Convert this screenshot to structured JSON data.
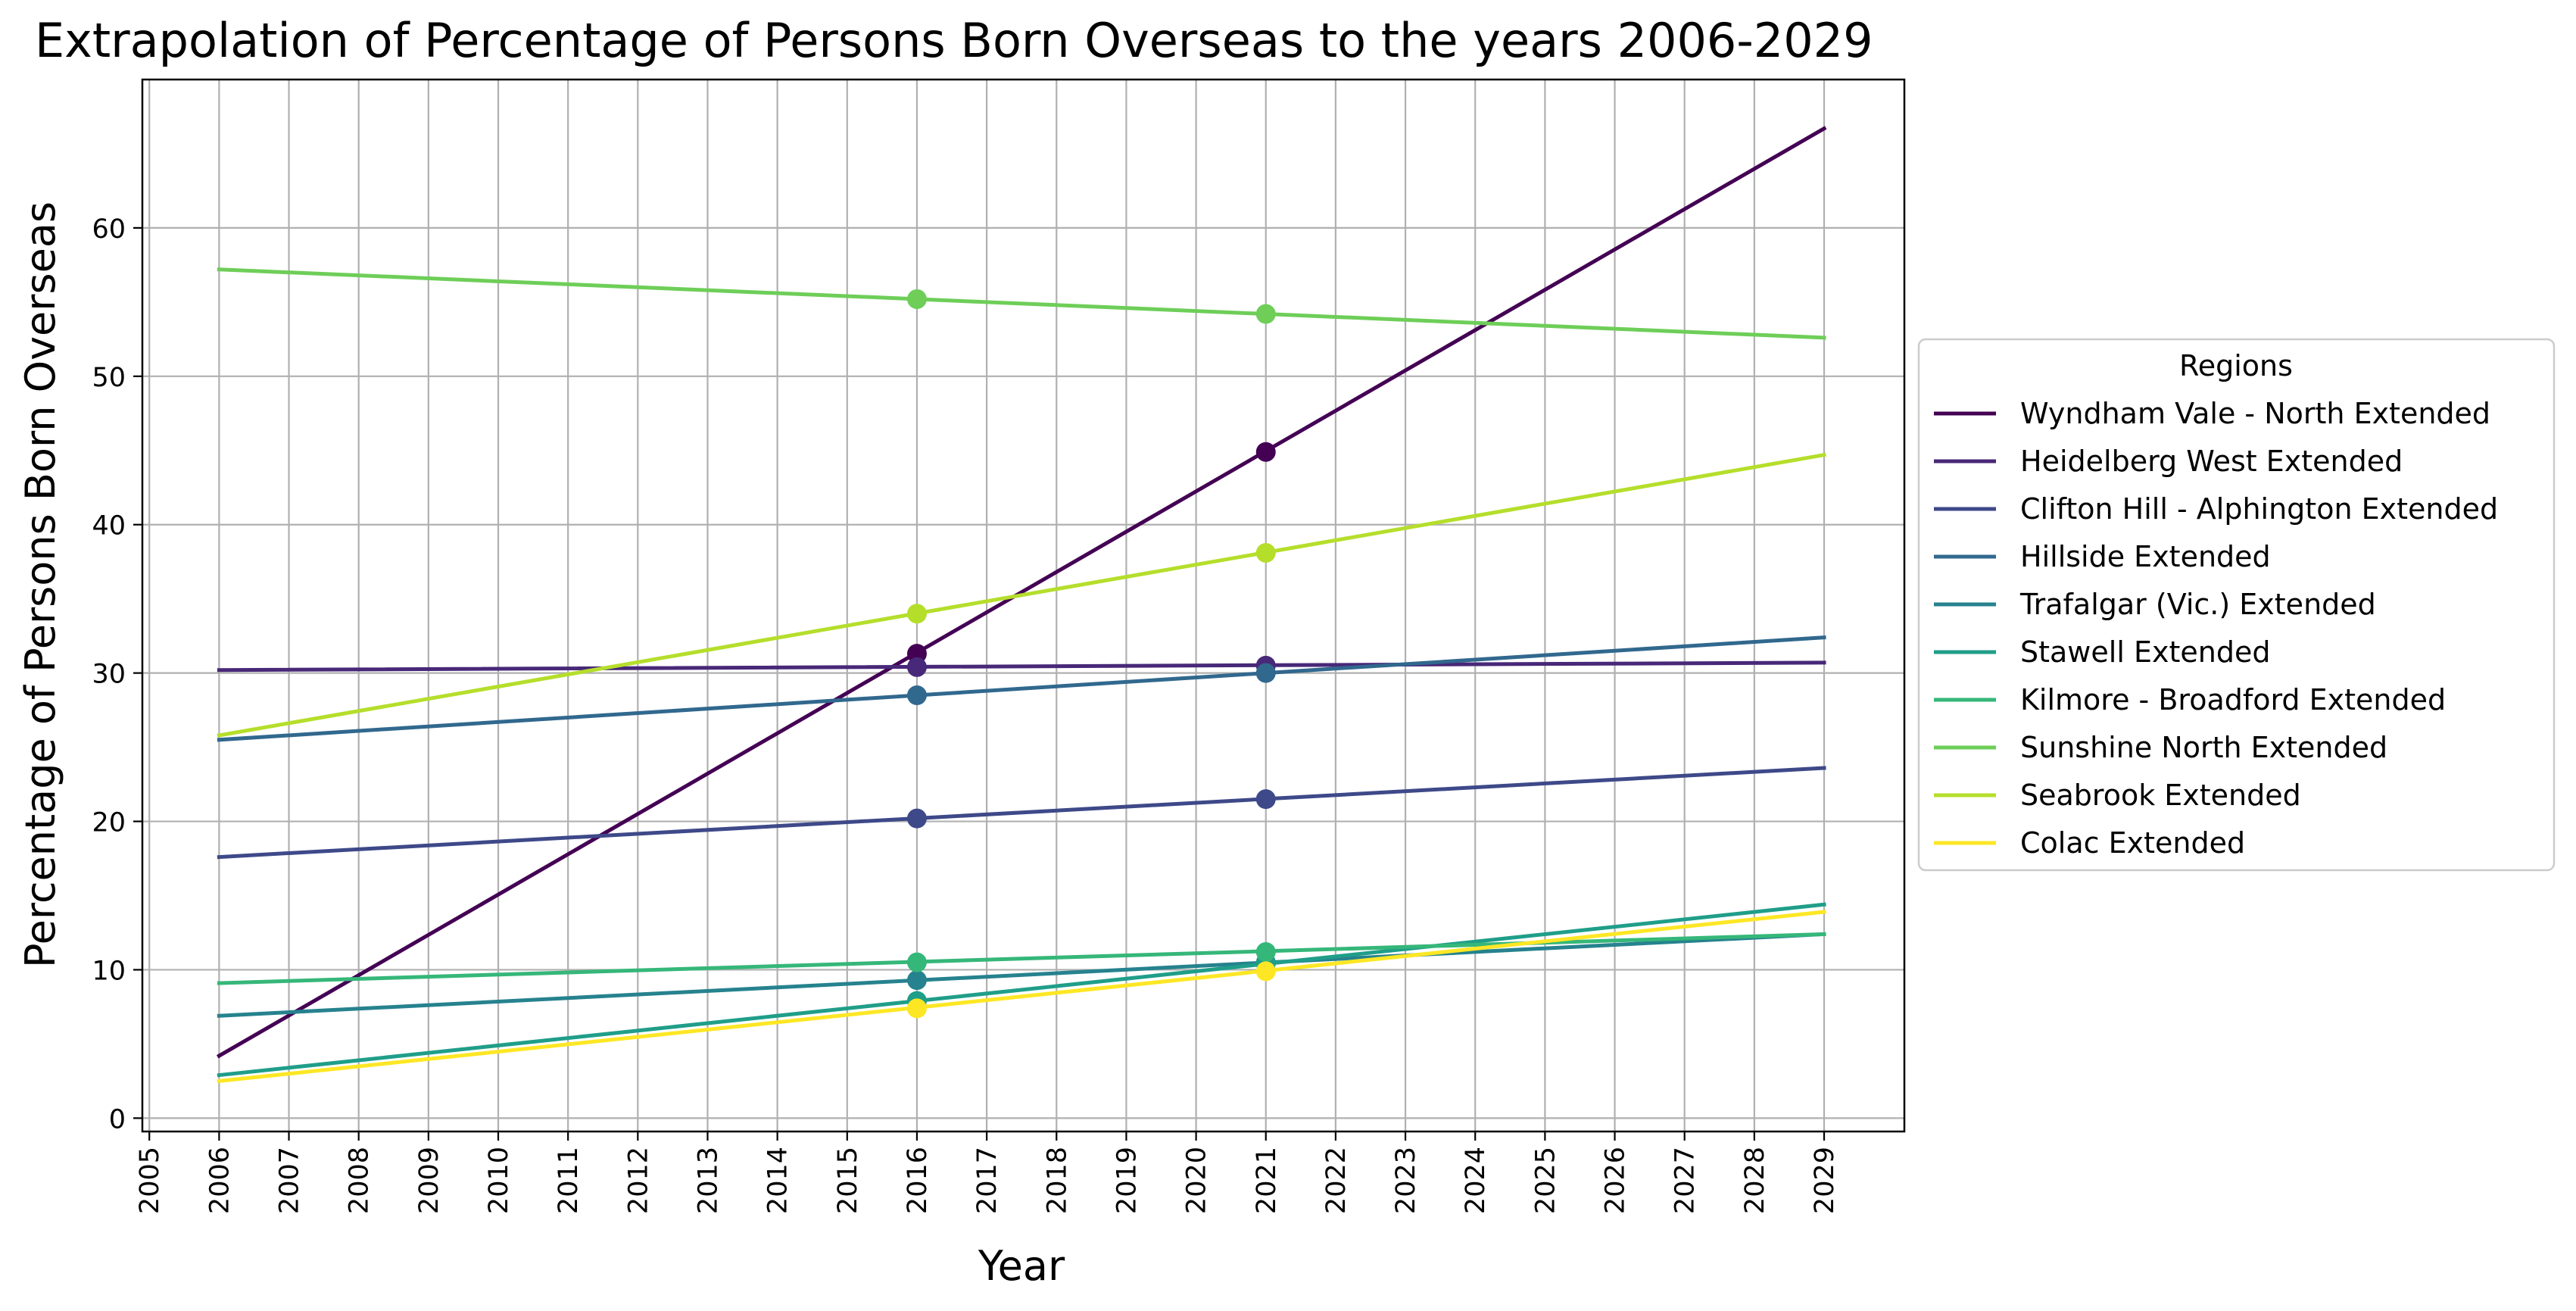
{
  "chart_data": {
    "type": "line",
    "title": "Extrapolation of Percentage of Persons Born Overseas to the years 2006-2029",
    "xlabel": "Year",
    "ylabel": "Percentage of Persons Born Overseas",
    "xlim": [
      2004.9,
      2030.15
    ],
    "ylim": [
      -0.9,
      70.0
    ],
    "x_ticks": [
      2005,
      2006,
      2007,
      2008,
      2009,
      2010,
      2011,
      2012,
      2013,
      2014,
      2015,
      2016,
      2017,
      2018,
      2019,
      2020,
      2021,
      2022,
      2023,
      2024,
      2025,
      2026,
      2027,
      2028,
      2029
    ],
    "y_ticks": [
      0,
      10,
      20,
      30,
      40,
      50,
      60
    ],
    "grid": true,
    "legend": {
      "title": "Regions",
      "placement": "outside-right"
    },
    "x_start": 2006,
    "x_end": 2029,
    "marker_years": [
      2016,
      2021
    ],
    "series": [
      {
        "name": "Wyndham Vale - North Extended",
        "color": "#440154",
        "start": 4.2,
        "end": 66.7,
        "points": [
          31.3,
          44.9
        ]
      },
      {
        "name": "Heidelberg West Extended",
        "color": "#482878",
        "start": 30.2,
        "end": 30.7,
        "points": [
          30.4,
          30.5
        ]
      },
      {
        "name": "Clifton Hill - Alphington Extended",
        "color": "#3e4989",
        "start": 17.6,
        "end": 23.6,
        "points": [
          20.2,
          21.5
        ]
      },
      {
        "name": "Hillside Extended",
        "color": "#31688e",
        "start": 25.5,
        "end": 32.4,
        "points": [
          28.5,
          30.0
        ]
      },
      {
        "name": "Trafalgar (Vic.) Extended",
        "color": "#26828e",
        "start": 6.9,
        "end": 12.4,
        "points": [
          9.3,
          10.5
        ]
      },
      {
        "name": "Stawell Extended",
        "color": "#1f9e89",
        "start": 2.9,
        "end": 14.4,
        "points": [
          7.9,
          10.4
        ]
      },
      {
        "name": "Kilmore - Broadford Extended",
        "color": "#35b779",
        "start": 9.1,
        "end": 12.4,
        "points": [
          10.5,
          11.2
        ]
      },
      {
        "name": "Sunshine North Extended",
        "color": "#6ece58",
        "start": 57.2,
        "end": 52.6,
        "points": [
          55.2,
          54.2
        ]
      },
      {
        "name": "Seabrook Extended",
        "color": "#b5de2b",
        "start": 25.8,
        "end": 44.7,
        "points": [
          34.0,
          38.1
        ]
      },
      {
        "name": "Colac Extended",
        "color": "#fde725",
        "start": 2.5,
        "end": 13.9,
        "points": [
          7.4,
          9.9
        ]
      }
    ]
  }
}
